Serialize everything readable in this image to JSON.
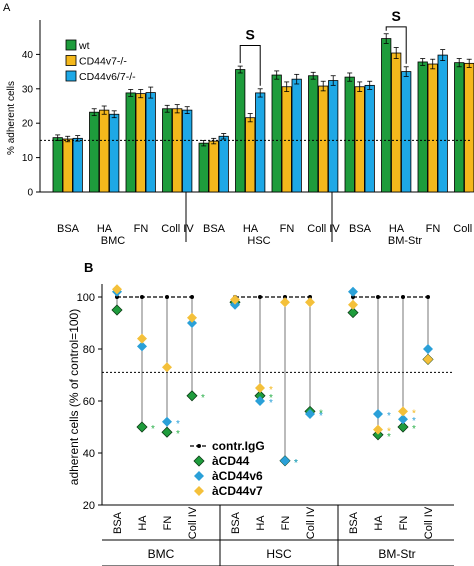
{
  "colors": {
    "wt": "#1e9c3c",
    "cd44v7": "#f4b81c",
    "cd44v6_7": "#1ea8e6",
    "aCD44": "#1e9c3c",
    "aCD44v6": "#2aa0d8",
    "aCD44v7": "#f4c03a",
    "star_green": "#2ab04a",
    "star_blue": "#2aa0d8",
    "star_yellow": "#f4b81c"
  },
  "chart_data": [
    {
      "panel_label": "A",
      "type": "bar",
      "ylabel": "% adherent cells",
      "ylim": [
        0,
        50
      ],
      "yticks": [
        "0",
        "10",
        "20",
        "30",
        "40"
      ],
      "reference_line": 15,
      "legend": [
        "wt",
        "CD44v7-/-",
        "CD44v6/7-/-"
      ],
      "groups": [
        {
          "name": "BMC",
          "categories": [
            "BSA",
            "HA",
            "FN",
            "Coll IV"
          ],
          "series": [
            {
              "name": "wt",
              "values": [
                15.8,
                23.2,
                28.8,
                24.2
              ],
              "errors": [
                0.8,
                1.0,
                1.0,
                1.0
              ]
            },
            {
              "name": "CD44v7-/-",
              "values": [
                15.4,
                23.8,
                28.6,
                24.2
              ],
              "errors": [
                0.8,
                1.2,
                1.2,
                1.2
              ]
            },
            {
              "name": "CD44v6/7-/-",
              "values": [
                15.6,
                22.6,
                28.9,
                23.8
              ],
              "errors": [
                0.8,
                1.0,
                1.6,
                1.0
              ]
            }
          ]
        },
        {
          "name": "HSC",
          "categories": [
            "BSA",
            "HA",
            "FN",
            "Coll IV"
          ],
          "series": [
            {
              "name": "wt",
              "values": [
                14.2,
                35.6,
                34.0,
                33.8
              ],
              "errors": [
                0.8,
                1.0,
                1.2,
                1.0
              ]
            },
            {
              "name": "CD44v7-/-",
              "values": [
                14.8,
                21.6,
                30.6,
                30.8
              ],
              "errors": [
                0.8,
                1.2,
                1.4,
                1.4
              ]
            },
            {
              "name": "CD44v6/7-/-",
              "values": [
                16.2,
                28.8,
                32.8,
                32.4
              ],
              "errors": [
                0.8,
                1.2,
                1.4,
                1.4
              ]
            }
          ]
        },
        {
          "name": "BM-Str",
          "categories": [
            "BSA",
            "HA",
            "FN",
            "Coll IV"
          ],
          "series": [
            {
              "name": "wt",
              "values": [
                33.4,
                44.6,
                37.8,
                37.6
              ],
              "errors": [
                1.2,
                1.4,
                1.0,
                1.2
              ]
            },
            {
              "name": "CD44v7-/-",
              "values": [
                30.6,
                40.4,
                37.2,
                37.4
              ],
              "errors": [
                1.4,
                1.6,
                1.4,
                1.2
              ]
            },
            {
              "name": "CD44v6/7-/-",
              "values": [
                31.0,
                35.0,
                39.8,
                37.8
              ],
              "errors": [
                1.2,
                1.4,
                1.6,
                1.8
              ]
            }
          ]
        }
      ],
      "significance": [
        {
          "group": "HSC",
          "category": "HA",
          "label": "S"
        },
        {
          "group": "BM-Str",
          "category": "HA",
          "label": "S"
        }
      ]
    },
    {
      "panel_label": "B",
      "type": "scatter",
      "ylabel": "adherent cells (% of control=100)",
      "ylim": [
        20,
        105
      ],
      "yticks": [
        "20",
        "40",
        "60",
        "80",
        "100"
      ],
      "reference_line": 71,
      "legend": [
        "contr.IgG",
        "àCD44",
        "àCD44v6",
        "àCD44v7"
      ],
      "groups": [
        {
          "name": "BMC",
          "categories": [
            "BSA",
            "HA",
            "FN",
            "Coll IV"
          ],
          "series": [
            {
              "name": "contr.IgG",
              "values": [
                100,
                100,
                100,
                100
              ]
            },
            {
              "name": "àCD44",
              "values": [
                95,
                50,
                48,
                62
              ]
            },
            {
              "name": "àCD44v6",
              "values": [
                102,
                81,
                52,
                90
              ]
            },
            {
              "name": "àCD44v7",
              "values": [
                103,
                84,
                73,
                92
              ]
            }
          ]
        },
        {
          "name": "HSC",
          "categories": [
            "BSA",
            "HA",
            "FN",
            "Coll IV"
          ],
          "series": [
            {
              "name": "contr.IgG",
              "values": [
                100,
                100,
                100,
                100
              ]
            },
            {
              "name": "àCD44",
              "values": [
                98,
                62,
                37,
                56
              ]
            },
            {
              "name": "àCD44v6",
              "values": [
                97,
                60,
                37,
                55
              ]
            },
            {
              "name": "àCD44v7",
              "values": [
                99,
                65,
                98,
                98
              ]
            }
          ]
        },
        {
          "name": "BM-Str",
          "categories": [
            "BSA",
            "HA",
            "FN",
            "Coll IV"
          ],
          "series": [
            {
              "name": "contr.IgG",
              "values": [
                100,
                100,
                100,
                100
              ]
            },
            {
              "name": "àCD44",
              "values": [
                94,
                47,
                50,
                76
              ]
            },
            {
              "name": "àCD44v6",
              "values": [
                102,
                55,
                53,
                80
              ]
            },
            {
              "name": "àCD44v7",
              "values": [
                97,
                49,
                56,
                76
              ]
            }
          ]
        }
      ],
      "significance_mark": "*"
    }
  ]
}
